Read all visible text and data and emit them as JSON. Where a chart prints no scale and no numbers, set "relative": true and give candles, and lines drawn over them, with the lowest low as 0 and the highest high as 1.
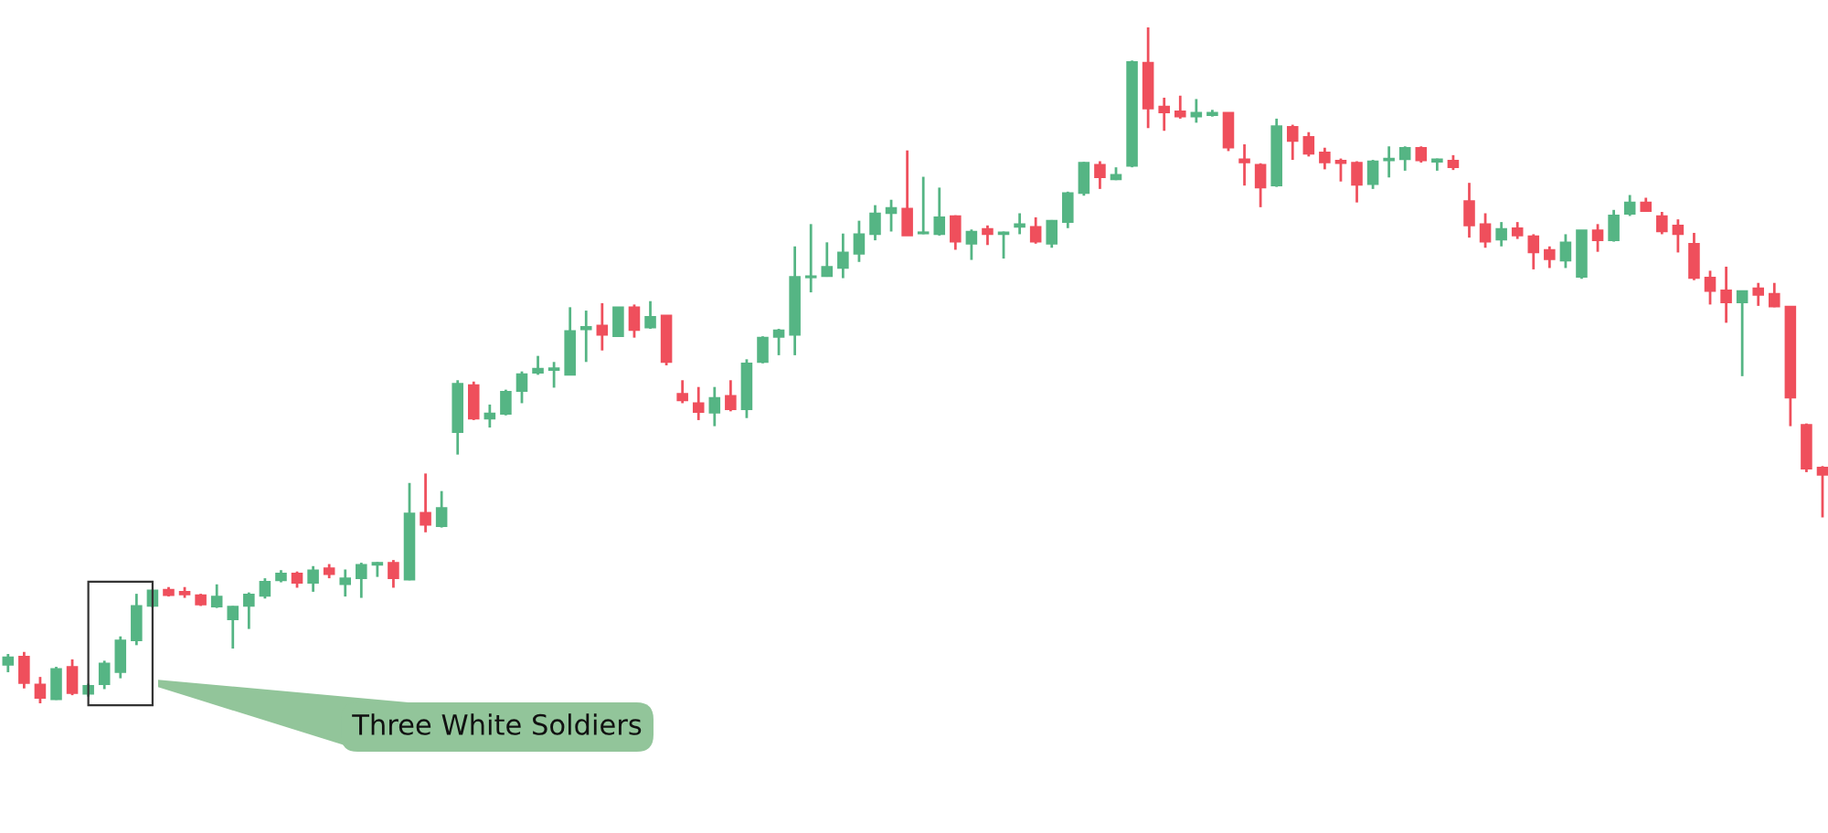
{
  "chart_data": {
    "type": "candlestick",
    "relative": true,
    "categories": [
      null,
      null,
      null,
      null,
      null,
      null,
      null,
      null,
      null,
      null,
      null,
      null,
      null,
      null,
      null,
      null,
      null,
      null,
      null,
      null,
      null,
      null,
      null,
      null,
      null,
      null,
      null,
      null,
      null,
      null,
      null,
      null,
      null,
      null,
      null,
      null,
      null,
      null,
      null,
      null,
      null,
      null,
      null,
      null,
      null,
      null,
      null,
      null,
      null,
      null,
      null,
      null,
      null,
      null,
      null,
      null,
      null,
      null,
      null,
      null,
      null,
      null,
      null,
      null,
      null,
      null,
      null,
      null,
      null,
      null,
      null,
      null,
      null,
      null,
      null,
      null,
      null,
      null,
      null,
      null,
      null,
      null,
      null,
      null,
      null,
      null,
      null,
      null,
      null,
      null,
      null,
      null,
      null,
      null,
      null,
      null,
      null,
      null,
      null,
      null,
      null,
      null,
      null,
      null,
      null,
      null,
      null,
      null,
      null,
      null,
      null,
      null,
      null,
      null
    ],
    "ohlc": [
      [
        0.057,
        0.073,
        0.046,
        0.068
      ],
      [
        0.069,
        0.076,
        0.022,
        0.03
      ],
      [
        0.028,
        0.039,
        0,
        0.008
      ],
      [
        0.006,
        0.054,
        0.005,
        0.051
      ],
      [
        0.054,
        0.065,
        0.012,
        0.015
      ],
      [
        0.014,
        0.029,
        0.01,
        0.026
      ],
      [
        0.028,
        0.063,
        0.021,
        0.059
      ],
      [
        0.046,
        0.099,
        0.037,
        0.093
      ],
      [
        0.093,
        0.162,
        0.086,
        0.144
      ],
      [
        0.144,
        0.168,
        0.142,
        0.167
      ],
      [
        0.168,
        0.172,
        0.158,
        0.16
      ],
      [
        0.165,
        0.172,
        0.156,
        0.161
      ],
      [
        0.16,
        0.162,
        0.144,
        0.146
      ],
      [
        0.143,
        0.176,
        0.141,
        0.158
      ],
      [
        0.124,
        0.144,
        0.081,
        0.143
      ],
      [
        0.144,
        0.164,
        0.11,
        0.161
      ],
      [
        0.159,
        0.185,
        0.155,
        0.18
      ],
      [
        0.182,
        0.197,
        0.179,
        0.192
      ],
      [
        0.192,
        0.195,
        0.171,
        0.178
      ],
      [
        0.178,
        0.203,
        0.165,
        0.197
      ],
      [
        0.2,
        0.206,
        0.185,
        0.191
      ],
      [
        0.176,
        0.198,
        0.158,
        0.185
      ],
      [
        0.185,
        0.208,
        0.156,
        0.205
      ],
      [
        0.205,
        0.209,
        0.187,
        0.208
      ],
      [
        0.208,
        0.212,
        0.171,
        0.185
      ],
      [
        0.183,
        0.326,
        0.182,
        0.281
      ],
      [
        0.282,
        0.34,
        0.253,
        0.264
      ],
      [
        0.262,
        0.314,
        0.26,
        0.289
      ],
      [
        0.401,
        0.478,
        0.368,
        0.473
      ],
      [
        0.471,
        0.476,
        0.419,
        0.421
      ],
      [
        0.421,
        0.442,
        0.408,
        0.429
      ],
      [
        0.428,
        0.464,
        0.426,
        0.461
      ],
      [
        0.462,
        0.491,
        0.444,
        0.487
      ],
      [
        0.489,
        0.514,
        0.486,
        0.495
      ],
      [
        0.493,
        0.505,
        0.467,
        0.496
      ],
      [
        0.486,
        0.586,
        0.486,
        0.551
      ],
      [
        0.553,
        0.581,
        0.505,
        0.557
      ],
      [
        0.559,
        0.592,
        0.522,
        0.545
      ],
      [
        0.543,
        0.586,
        0.543,
        0.586
      ],
      [
        0.586,
        0.59,
        0.541,
        0.552
      ],
      [
        0.556,
        0.595,
        0.554,
        0.572
      ],
      [
        0.574,
        0.574,
        0.5,
        0.505
      ],
      [
        0.458,
        0.478,
        0.444,
        0.448
      ],
      [
        0.444,
        0.468,
        0.419,
        0.431
      ],
      [
        0.43,
        0.468,
        0.41,
        0.452
      ],
      [
        0.455,
        0.478,
        0.432,
        0.435
      ],
      [
        0.435,
        0.509,
        0.422,
        0.503
      ],
      [
        0.505,
        0.543,
        0.503,
        0.541
      ],
      [
        0.542,
        0.554,
        0.515,
        0.552
      ],
      [
        0.545,
        0.676,
        0.515,
        0.631
      ],
      [
        0.63,
        0.709,
        0.608,
        0.632
      ],
      [
        0.632,
        0.682,
        0.631,
        0.646
      ],
      [
        0.644,
        0.695,
        0.629,
        0.667
      ],
      [
        0.665,
        0.714,
        0.653,
        0.694
      ],
      [
        0.694,
        0.737,
        0.685,
        0.725
      ],
      [
        0.725,
        0.745,
        0.698,
        0.733
      ],
      [
        0.732,
        0.818,
        0.692,
        0.692
      ],
      [
        0.695,
        0.779,
        0.694,
        0.697
      ],
      [
        0.694,
        0.763,
        0.692,
        0.719
      ],
      [
        0.721,
        0.722,
        0.671,
        0.683
      ],
      [
        0.68,
        0.701,
        0.656,
        0.698
      ],
      [
        0.702,
        0.707,
        0.678,
        0.694
      ],
      [
        0.694,
        0.698,
        0.658,
        0.697
      ],
      [
        0.705,
        0.725,
        0.694,
        0.709
      ],
      [
        0.705,
        0.719,
        0.68,
        0.683
      ],
      [
        0.68,
        0.715,
        0.674,
        0.714
      ],
      [
        0.712,
        0.757,
        0.703,
        0.755
      ],
      [
        0.755,
        0.801,
        0.751,
        0.8
      ],
      [
        0.797,
        0.802,
        0.761,
        0.778
      ],
      [
        0.775,
        0.793,
        0.774,
        0.782
      ],
      [
        0.795,
        0.951,
        0.793,
        0.949
      ],
      [
        0.948,
        1,
        0.851,
        0.88
      ],
      [
        0.883,
        0.896,
        0.847,
        0.874
      ],
      [
        0.876,
        0.899,
        0.865,
        0.868
      ],
      [
        0.868,
        0.894,
        0.859,
        0.874
      ],
      [
        0.87,
        0.878,
        0.868,
        0.874
      ],
      [
        0.874,
        0.874,
        0.817,
        0.822
      ],
      [
        0.805,
        0.827,
        0.766,
        0.8
      ],
      [
        0.797,
        0.799,
        0.734,
        0.763
      ],
      [
        0.766,
        0.865,
        0.764,
        0.854
      ],
      [
        0.853,
        0.856,
        0.804,
        0.832
      ],
      [
        0.838,
        0.845,
        0.809,
        0.813
      ],
      [
        0.815,
        0.822,
        0.79,
        0.8
      ],
      [
        0.803,
        0.806,
        0.772,
        0.799
      ],
      [
        0.8,
        0.802,
        0.741,
        0.767
      ],
      [
        0.768,
        0.804,
        0.761,
        0.802
      ],
      [
        0.803,
        0.824,
        0.778,
        0.806
      ],
      [
        0.805,
        0.824,
        0.788,
        0.822
      ],
      [
        0.822,
        0.824,
        0.8,
        0.803
      ],
      [
        0.801,
        0.806,
        0.788,
        0.805
      ],
      [
        0.803,
        0.811,
        0.789,
        0.793
      ],
      [
        0.743,
        0.77,
        0.689,
        0.707
      ],
      [
        0.709,
        0.725,
        0.674,
        0.683
      ],
      [
        0.686,
        0.712,
        0.676,
        0.702
      ],
      [
        0.703,
        0.712,
        0.687,
        0.692
      ],
      [
        0.691,
        0.694,
        0.642,
        0.667
      ],
      [
        0.671,
        0.676,
        0.644,
        0.657
      ],
      [
        0.655,
        0.694,
        0.644,
        0.682
      ],
      [
        0.631,
        0.7,
        0.628,
        0.7
      ],
      [
        0.7,
        0.709,
        0.668,
        0.685
      ],
      [
        0.685,
        0.73,
        0.683,
        0.722
      ],
      [
        0.724,
        0.752,
        0.721,
        0.741
      ],
      [
        0.741,
        0.748,
        0.727,
        0.728
      ],
      [
        0.721,
        0.727,
        0.694,
        0.698
      ],
      [
        0.707,
        0.716,
        0.667,
        0.694
      ],
      [
        0.68,
        0.696,
        0.626,
        0.629
      ],
      [
        0.63,
        0.64,
        0.59,
        0.61
      ],
      [
        0.611,
        0.646,
        0.563,
        0.593
      ],
      [
        0.593,
        0.61,
        0.484,
        0.61
      ],
      [
        0.614,
        0.622,
        0.588,
        0.604
      ],
      [
        0.606,
        0.622,
        0.586,
        0.587
      ],
      [
        0.587,
        0.587,
        0.41,
        0.452
      ],
      [
        0.412,
        0.414,
        0.342,
        0.347
      ],
      [
        0.349,
        0.351,
        0.275,
        0.338
      ]
    ],
    "colors": [
      "#55b584",
      "#ef4f5c",
      "#ef4f5c",
      "#55b584",
      "#ef4f5c",
      "#55b584",
      "#55b584",
      "#55b584",
      "#55b584",
      "#55b584",
      "#ef4f5c",
      "#ef4f5c",
      "#ef4f5c",
      "#55b584",
      "#55b584",
      "#55b584",
      "#55b584",
      "#55b584",
      "#ef4f5c",
      "#55b584",
      "#ef4f5c",
      "#55b584",
      "#55b584",
      "#55b584",
      "#ef4f5c",
      "#55b584",
      "#ef4f5c",
      "#55b584",
      "#55b584",
      "#ef4f5c",
      "#55b584",
      "#55b584",
      "#55b584",
      "#55b584",
      "#55b584",
      "#55b584",
      "#55b584",
      "#ef4f5c",
      "#55b584",
      "#ef4f5c",
      "#55b584",
      "#ef4f5c",
      "#ef4f5c",
      "#ef4f5c",
      "#55b584",
      "#ef4f5c",
      "#55b584",
      "#55b584",
      "#55b584",
      "#55b584",
      "#55b584",
      "#55b584",
      "#55b584",
      "#55b584",
      "#55b584",
      "#55b584",
      "#ef4f5c",
      "#55b584",
      "#55b584",
      "#ef4f5c",
      "#55b584",
      "#ef4f5c",
      "#55b584",
      "#55b584",
      "#ef4f5c",
      "#55b584",
      "#55b584",
      "#55b584",
      "#ef4f5c",
      "#55b584",
      "#55b584",
      "#ef4f5c",
      "#ef4f5c",
      "#ef4f5c",
      "#55b584",
      "#55b584",
      "#ef4f5c",
      "#ef4f5c",
      "#ef4f5c",
      "#55b584",
      "#ef4f5c",
      "#ef4f5c",
      "#ef4f5c",
      "#ef4f5c",
      "#ef4f5c",
      "#55b584",
      "#55b584",
      "#55b584",
      "#ef4f5c",
      "#55b584",
      "#ef4f5c",
      "#ef4f5c",
      "#ef4f5c",
      "#55b584",
      "#ef4f5c",
      "#ef4f5c",
      "#ef4f5c",
      "#55b584",
      "#55b584",
      "#ef4f5c",
      "#55b584",
      "#55b584",
      "#ef4f5c",
      "#ef4f5c",
      "#ef4f5c",
      "#ef4f5c",
      "#ef4f5c",
      "#ef4f5c",
      "#55b584",
      "#ef4f5c",
      "#ef4f5c",
      "#ef4f5c",
      "#ef4f5c",
      "#ef4f5c"
    ],
    "annotations": [
      "Three White Soldiers"
    ]
  }
}
